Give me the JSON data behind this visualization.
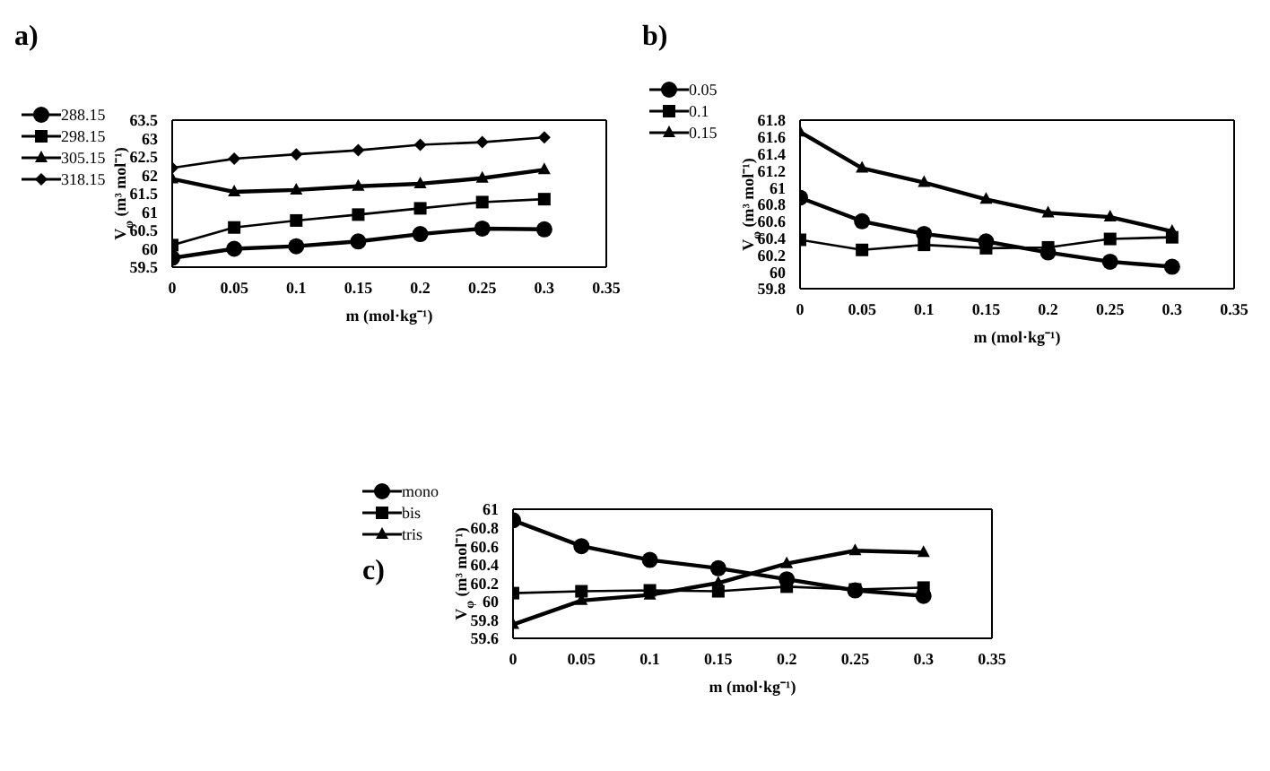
{
  "chart_data": [
    {
      "type": "line",
      "title": "a)",
      "xlabel": "m (mol·kg⁻¹)",
      "ylabel": "V$_{φ}$ (m³ mol⁻¹)",
      "x": [
        0,
        0.05,
        0.1,
        0.15,
        0.2,
        0.25,
        0.3
      ],
      "xlim": [
        0,
        0.35
      ],
      "xticks": [
        0,
        0.05,
        0.1,
        0.15,
        0.2,
        0.25,
        0.3,
        0.35
      ],
      "ylim": [
        59.5,
        63.5
      ],
      "yticks": [
        59.5,
        60,
        60.5,
        61,
        61.5,
        62,
        62.5,
        63,
        63.5
      ],
      "grid": false,
      "legend": "top left",
      "series": [
        {
          "name": "288.15",
          "color": "#000000",
          "marker": "circle",
          "values": [
            59.75,
            60.0,
            60.07,
            60.2,
            60.4,
            60.55,
            60.53
          ]
        },
        {
          "name": "298.15",
          "color": "#000000",
          "marker": "square",
          "values": [
            60.1,
            60.58,
            60.77,
            60.93,
            61.1,
            61.27,
            61.35
          ]
        },
        {
          "name": "305.15",
          "color": "#000000",
          "marker": "triangle",
          "values": [
            61.9,
            61.55,
            61.6,
            61.7,
            61.77,
            61.92,
            62.15
          ]
        },
        {
          "name": "318.15",
          "color": "#000000",
          "marker": "diamond",
          "values": [
            62.2,
            62.45,
            62.57,
            62.68,
            62.83,
            62.9,
            63.03
          ]
        }
      ]
    },
    {
      "type": "line",
      "title": "b)",
      "xlabel": "m (mol·kg⁻¹)",
      "ylabel": "V$_{φ}$ (m³ mol⁻¹)",
      "x": [
        0,
        0.05,
        0.1,
        0.15,
        0.2,
        0.25,
        0.3
      ],
      "xlim": [
        0,
        0.35
      ],
      "xticks": [
        0,
        0.05,
        0.1,
        0.15,
        0.2,
        0.25,
        0.3,
        0.35
      ],
      "ylim": [
        59.8,
        61.8
      ],
      "yticks": [
        59.8,
        60,
        60.2,
        60.4,
        60.6,
        60.8,
        61,
        61.2,
        61.4,
        61.6,
        61.8
      ],
      "grid": false,
      "legend": "top left",
      "series": [
        {
          "name": "0.05",
          "color": "#000000",
          "marker": "circle",
          "values": [
            60.88,
            60.6,
            60.45,
            60.36,
            60.23,
            60.12,
            60.06
          ]
        },
        {
          "name": "0.1",
          "color": "#000000",
          "marker": "square",
          "values": [
            60.38,
            60.26,
            60.32,
            60.28,
            60.29,
            60.39,
            60.41
          ]
        },
        {
          "name": "0.15",
          "color": "#000000",
          "marker": "triangle",
          "values": [
            61.66,
            61.23,
            61.06,
            60.86,
            60.7,
            60.65,
            60.48
          ]
        }
      ]
    },
    {
      "type": "line",
      "title": "c)",
      "xlabel": "m (mol·kg⁻¹)",
      "ylabel": "V$_{φ}$ (m³ mol⁻¹)",
      "x": [
        0,
        0.05,
        0.1,
        0.15,
        0.2,
        0.25,
        0.3
      ],
      "xlim": [
        0,
        0.35
      ],
      "xticks": [
        0,
        0.05,
        0.1,
        0.15,
        0.2,
        0.25,
        0.3,
        0.35
      ],
      "ylim": [
        59.6,
        61
      ],
      "yticks": [
        59.6,
        59.8,
        60,
        60.2,
        60.4,
        60.6,
        60.8,
        61
      ],
      "grid": false,
      "legend": "top left",
      "series": [
        {
          "name": "mono",
          "color": "#000000",
          "marker": "circle",
          "values": [
            60.88,
            60.6,
            60.45,
            60.36,
            60.24,
            60.12,
            60.06
          ]
        },
        {
          "name": "bis",
          "color": "#000000",
          "marker": "square",
          "values": [
            60.09,
            60.11,
            60.12,
            60.11,
            60.16,
            60.13,
            60.15
          ]
        },
        {
          "name": "tris",
          "color": "#000000",
          "marker": "triangle",
          "values": [
            59.75,
            60.01,
            60.07,
            60.2,
            60.41,
            60.55,
            60.53
          ]
        }
      ]
    }
  ]
}
